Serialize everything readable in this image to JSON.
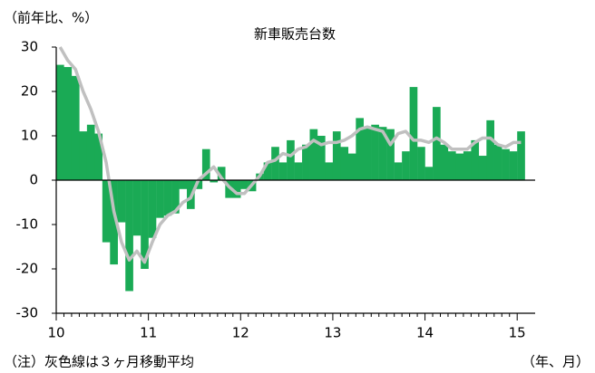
{
  "chart_data": {
    "type": "bar_line",
    "title": "新車販売台数",
    "y_label": "（前年比、%）",
    "x_label": "（年、月）",
    "note": "（注）灰色線は３ヶ月移動平均",
    "categories": [
      "10",
      null,
      null,
      null,
      null,
      null,
      null,
      null,
      null,
      null,
      null,
      null,
      "11",
      null,
      null,
      null,
      null,
      null,
      null,
      null,
      null,
      null,
      null,
      null,
      "12",
      null,
      null,
      null,
      null,
      null,
      null,
      null,
      null,
      null,
      null,
      null,
      "13",
      null,
      null,
      null,
      null,
      null,
      null,
      null,
      null,
      null,
      null,
      null,
      "14",
      null,
      null,
      null,
      null,
      null,
      null,
      null,
      null,
      null,
      null,
      null,
      "15"
    ],
    "series": [
      {
        "type": "bar",
        "color": "#1aaa55",
        "values": [
          26,
          25.5,
          23.5,
          11,
          12.5,
          10.5,
          -14,
          -19,
          -9.5,
          -25,
          -12.5,
          -20,
          -13,
          -8.5,
          -8,
          -7.5,
          -2,
          -6.5,
          -2,
          7,
          -0.5,
          3,
          -4,
          -4,
          -2,
          -2.5,
          1.5,
          4,
          7.5,
          4,
          9,
          4,
          8,
          11.5,
          10,
          4,
          11,
          7.5,
          6,
          14,
          12,
          12.5,
          12,
          11.5,
          4,
          6.5,
          21,
          7.5,
          3,
          16.5,
          8,
          6.5,
          6,
          6.5,
          9,
          5.5,
          13.5,
          8,
          7,
          6.5,
          11
        ]
      },
      {
        "type": "line",
        "color": "#c0c0c0",
        "values": [
          30,
          27,
          25,
          20,
          16,
          11,
          4,
          -7,
          -14,
          -18,
          -16,
          -18.5,
          -14,
          -10,
          -8,
          -7,
          -5,
          -4,
          0,
          1.5,
          3,
          0.5,
          -1.5,
          -3,
          -3,
          -1,
          1,
          4,
          4.5,
          6,
          5.5,
          7,
          7.5,
          9,
          8,
          8.5,
          8.5,
          9,
          10,
          11.5,
          12,
          11.5,
          11,
          8,
          10.5,
          11,
          9,
          9,
          8.5,
          9.5,
          8.5,
          7,
          7,
          7,
          8.5,
          9.5,
          9.5,
          8,
          7.5,
          8.5,
          8.5
        ]
      }
    ],
    "ylim": [
      -30,
      30
    ],
    "yticks": [
      -30,
      -20,
      -10,
      0,
      10,
      20,
      30
    ]
  }
}
